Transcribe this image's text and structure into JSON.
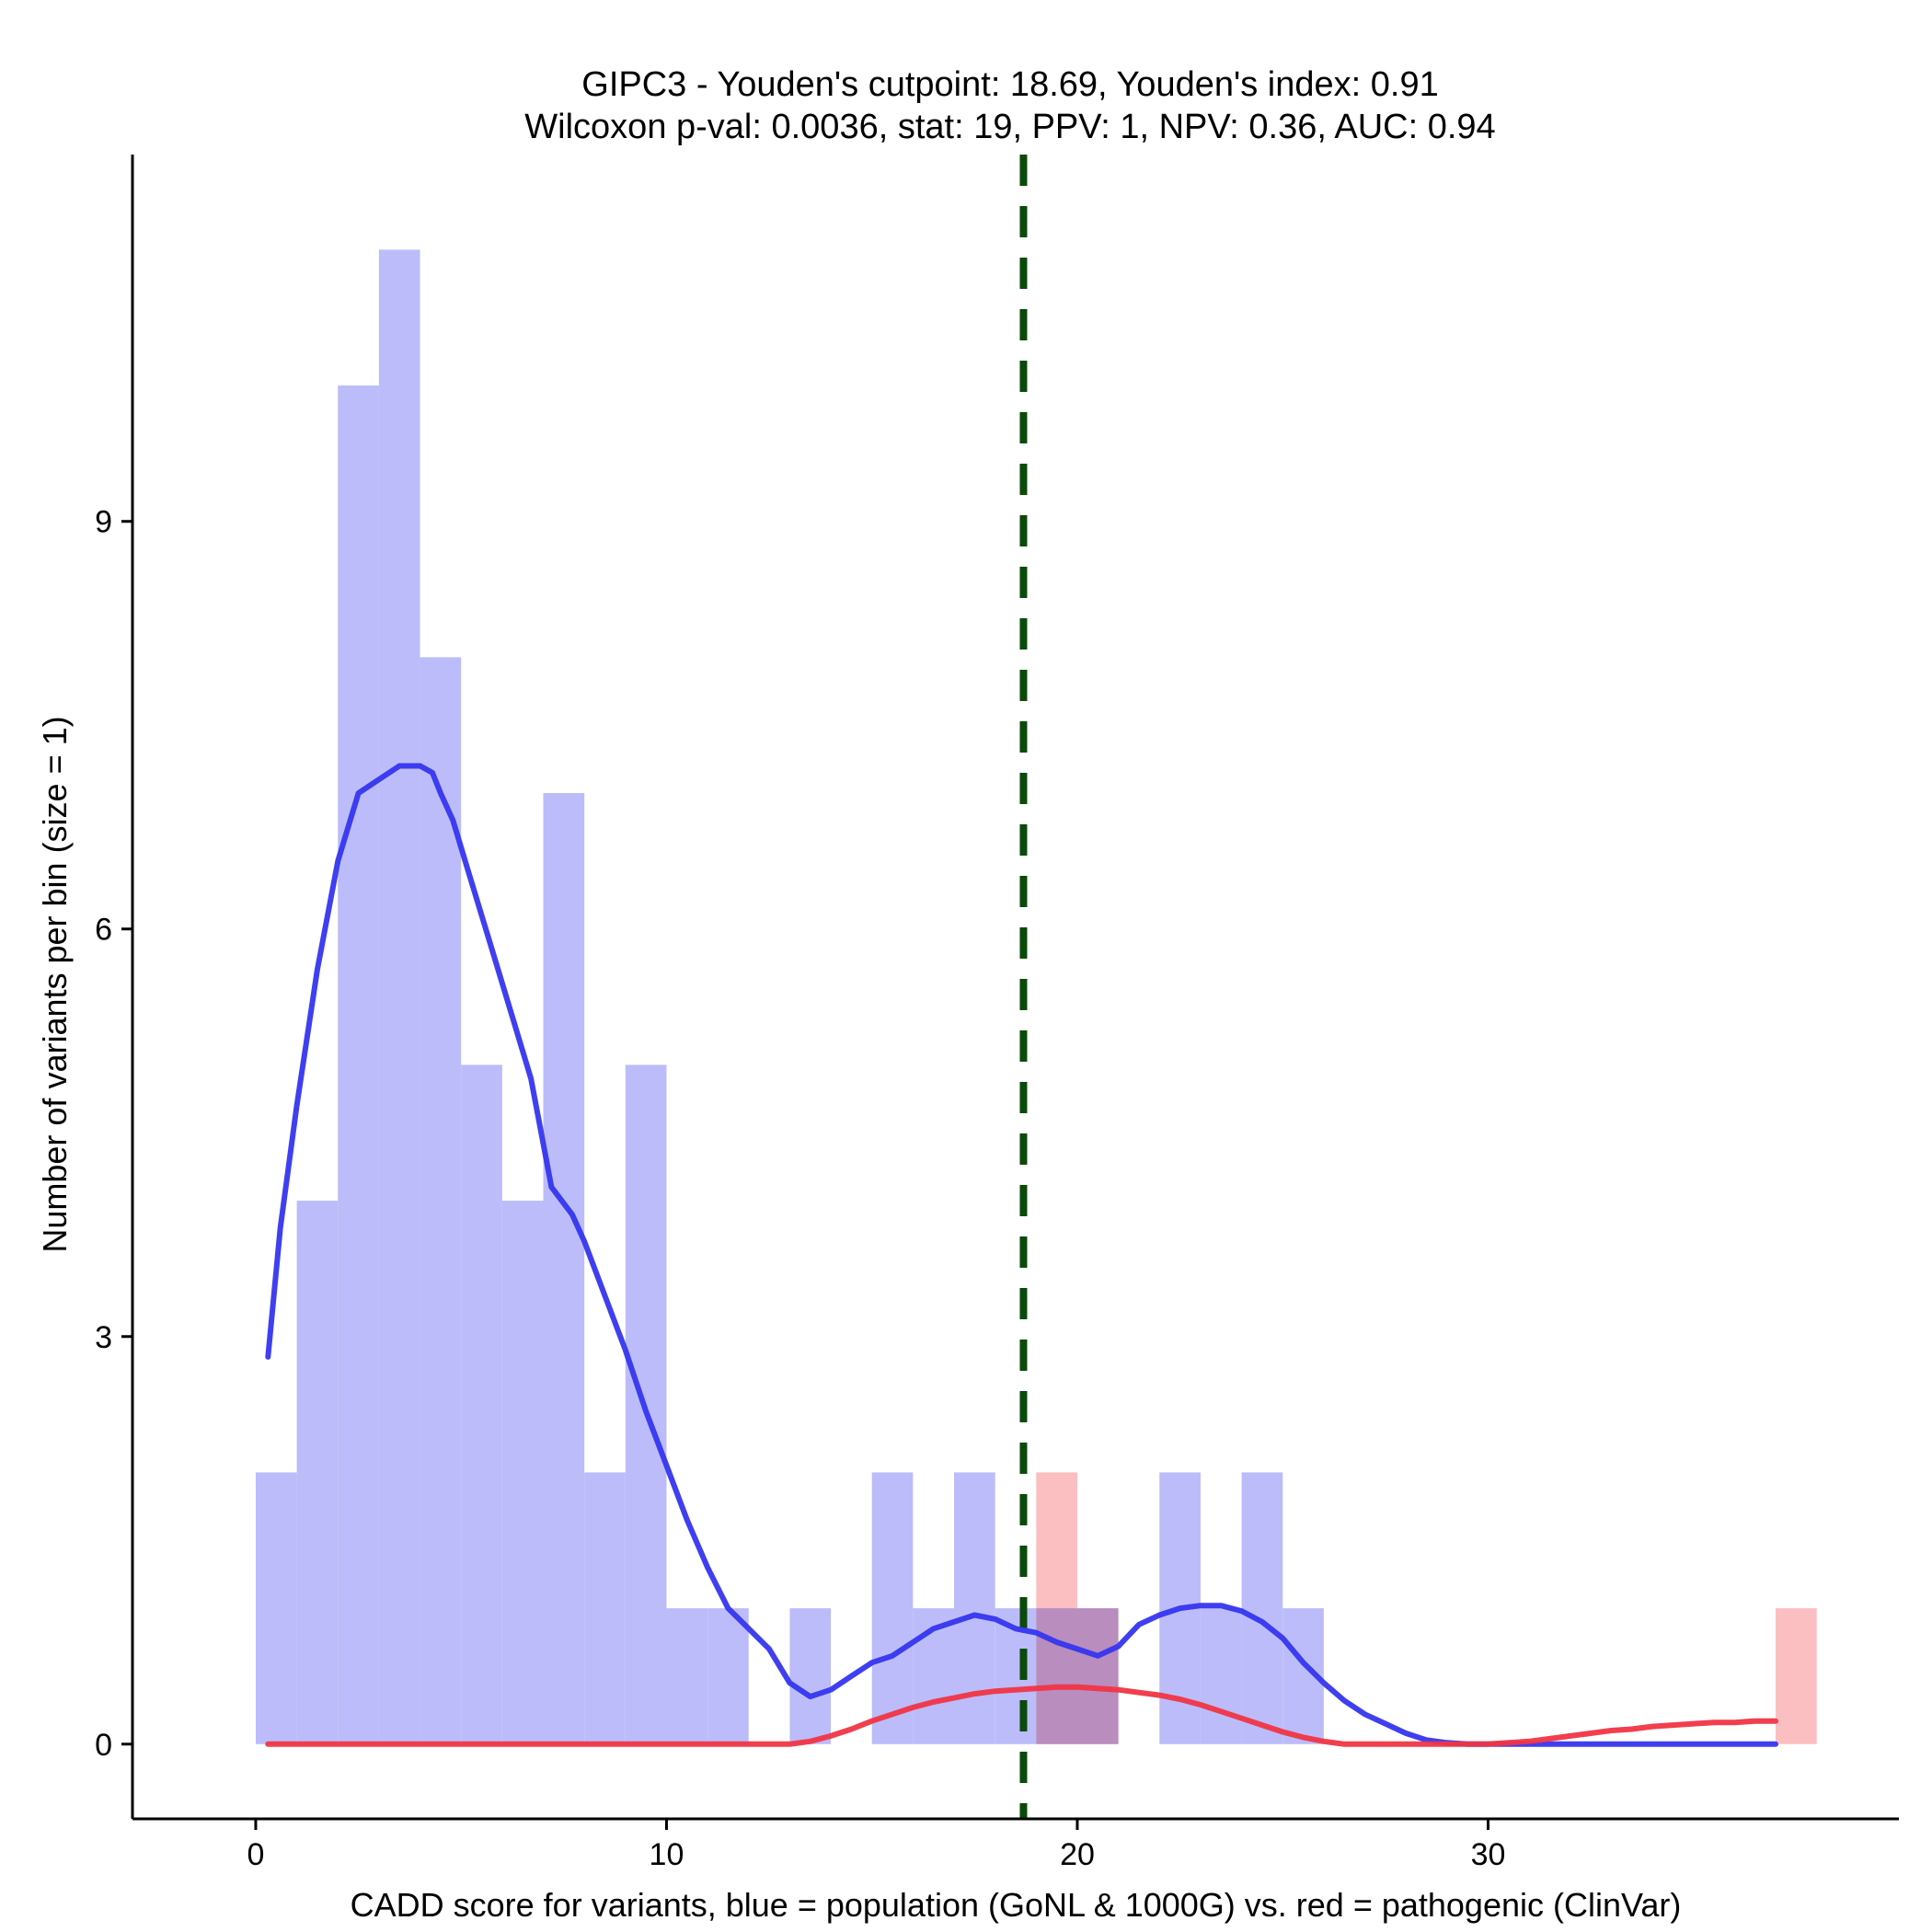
{
  "chart_data": {
    "type": "histogram",
    "title_line1": "GIPC3 - Youden's cutpoint: 18.69, Youden's index: 0.91",
    "title_line2": "Wilcoxon p-val: 0.0036, stat: 19, PPV: 1, NPV: 0.36, AUC: 0.94",
    "xlabel": "CADD score for variants, blue = population (GoNL & 1000G) vs. red = pathogenic (ClinVar)",
    "ylabel": "Number of variants per bin (size = 1)",
    "xlim": [
      -3,
      40
    ],
    "ylim": [
      -0.55,
      11.7
    ],
    "x_ticks": [
      0,
      10,
      20,
      30
    ],
    "y_ticks": [
      0,
      3,
      6,
      9
    ],
    "bin_width": 1,
    "cutpoint": 18.69,
    "colors": {
      "population_bar": "#bcbcfa",
      "pathogenic_bar": "#fbbcbe",
      "population_density": "#3535f0",
      "pathogenic_density": "#f03545",
      "cutpoint_line": "#0a4a0a"
    },
    "series": [
      {
        "name": "population (GoNL & 1000G)",
        "bins": [
          {
            "x0": 0,
            "count": 2
          },
          {
            "x0": 1,
            "count": 4
          },
          {
            "x0": 2,
            "count": 10
          },
          {
            "x0": 3,
            "count": 11
          },
          {
            "x0": 4,
            "count": 8
          },
          {
            "x0": 5,
            "count": 5
          },
          {
            "x0": 6,
            "count": 4
          },
          {
            "x0": 7,
            "count": 7
          },
          {
            "x0": 8,
            "count": 2
          },
          {
            "x0": 9,
            "count": 5
          },
          {
            "x0": 10,
            "count": 1
          },
          {
            "x0": 11,
            "count": 1
          },
          {
            "x0": 13,
            "count": 1
          },
          {
            "x0": 15,
            "count": 2
          },
          {
            "x0": 16,
            "count": 1
          },
          {
            "x0": 17,
            "count": 2
          },
          {
            "x0": 18,
            "count": 1
          },
          {
            "x0": 19,
            "count": 1
          },
          {
            "x0": 20,
            "count": 1
          },
          {
            "x0": 22,
            "count": 2
          },
          {
            "x0": 23,
            "count": 1
          },
          {
            "x0": 24,
            "count": 2
          },
          {
            "x0": 25,
            "count": 1
          }
        ],
        "density_x": [
          0.3,
          0.6,
          1.0,
          1.5,
          2.0,
          2.5,
          3.0,
          3.5,
          4.0,
          4.3,
          4.5,
          4.8,
          5.2,
          5.7,
          6.2,
          6.7,
          7.2,
          7.7,
          8.0,
          8.5,
          9.0,
          9.5,
          10.0,
          10.5,
          11.0,
          11.5,
          12.0,
          12.5,
          13.0,
          13.5,
          14.0,
          14.5,
          15.0,
          15.5,
          16.0,
          16.5,
          17.0,
          17.5,
          18.0,
          18.5,
          19.0,
          19.5,
          20.0,
          20.5,
          21.0,
          21.5,
          22.0,
          22.5,
          23.0,
          23.5,
          24.0,
          24.5,
          25.0,
          25.5,
          26.0,
          26.5,
          27.0,
          27.5,
          28.0,
          28.5,
          29.0,
          29.5,
          30.0,
          31.0,
          32.0,
          33.0,
          34.0,
          35.0,
          36.0,
          37.0
        ],
        "density_y": [
          2.85,
          3.8,
          4.7,
          5.7,
          6.5,
          7.0,
          7.1,
          7.2,
          7.2,
          7.15,
          7.0,
          6.8,
          6.4,
          5.9,
          5.4,
          4.9,
          4.1,
          3.9,
          3.7,
          3.3,
          2.9,
          2.45,
          2.05,
          1.65,
          1.3,
          1.0,
          0.85,
          0.7,
          0.45,
          0.35,
          0.4,
          0.5,
          0.6,
          0.65,
          0.75,
          0.85,
          0.9,
          0.95,
          0.92,
          0.85,
          0.82,
          0.75,
          0.7,
          0.65,
          0.72,
          0.88,
          0.95,
          1.0,
          1.02,
          1.02,
          0.98,
          0.9,
          0.78,
          0.6,
          0.45,
          0.32,
          0.22,
          0.15,
          0.08,
          0.03,
          0.01,
          0.0,
          0.0,
          0.0,
          0.0,
          0.0,
          0.0,
          0.0,
          0.0,
          0.0
        ]
      },
      {
        "name": "pathogenic (ClinVar)",
        "bins": [
          {
            "x0": 19,
            "count": 2
          },
          {
            "x0": 20,
            "count": 1
          },
          {
            "x0": 37,
            "count": 1
          }
        ],
        "density_x": [
          0.3,
          2,
          4,
          6,
          8,
          10,
          12,
          13.0,
          13.5,
          14.0,
          14.5,
          15.0,
          15.5,
          16.0,
          16.5,
          17.0,
          17.5,
          18.0,
          18.5,
          19.0,
          19.5,
          20.0,
          20.5,
          21.0,
          21.5,
          22.0,
          22.5,
          23.0,
          23.5,
          24.0,
          24.5,
          25.0,
          25.5,
          26.0,
          26.5,
          27.0,
          28.0,
          29.0,
          30.0,
          30.5,
          31.0,
          31.5,
          32.0,
          32.5,
          33.0,
          33.5,
          34.0,
          34.5,
          35.0,
          35.5,
          36.0,
          36.5,
          37.0
        ],
        "density_y": [
          0.0,
          0.0,
          0.0,
          0.0,
          0.0,
          0.0,
          0.0,
          0.0,
          0.02,
          0.06,
          0.11,
          0.17,
          0.22,
          0.27,
          0.31,
          0.34,
          0.37,
          0.39,
          0.4,
          0.41,
          0.42,
          0.42,
          0.41,
          0.4,
          0.38,
          0.36,
          0.33,
          0.29,
          0.24,
          0.19,
          0.14,
          0.09,
          0.05,
          0.02,
          0.0,
          0.0,
          0.0,
          0.0,
          0.0,
          0.01,
          0.02,
          0.04,
          0.06,
          0.08,
          0.1,
          0.11,
          0.13,
          0.14,
          0.15,
          0.16,
          0.16,
          0.17,
          0.17
        ]
      }
    ]
  }
}
